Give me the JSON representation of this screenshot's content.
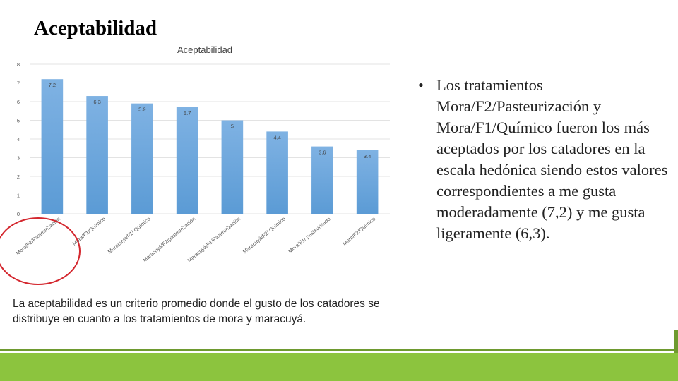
{
  "slide": {
    "title": "Aceptabilidad",
    "bullet_symbol": "•",
    "bullet": "Los tratamientos Mora/F2/Pasteurización y Mora/F1/Químico fueron los más aceptados por los catadores en la escala hedónica siendo estos valores correspondientes a me gusta moderadamente (7,2) y me gusta ligeramente (6,3).",
    "footnote": "La aceptabilidad es un criterio promedio donde el gusto de los catadores se distribuye en cuanto a los tratamientos de mora y maracuyá."
  },
  "colors": {
    "bar": "#5b9bd5",
    "bar_top": "#7fb2e3",
    "grid": "#e3e3e3",
    "axis_text": "#595959",
    "highlight": "#d4282f",
    "accent_green": "#8cc43e"
  },
  "chart_data": {
    "type": "bar",
    "title": "Aceptabilidad",
    "categories": [
      "Mora/F2/Pasteurización",
      "Mora/F1/Químico",
      "Maracuyá/F1/ Químico",
      "Maracuyá/F2/pasteurización",
      "Maracuyá/F1/Pasteurización",
      "Maracuyá/F2/ Químico",
      "Mora/F1/ pasteurizado",
      "Mora/F2/Químico"
    ],
    "values": [
      7.2,
      6.3,
      5.9,
      5.7,
      5,
      4.4,
      3.6,
      3.4
    ],
    "value_labels": [
      "7.2",
      "6.3",
      "5.9",
      "5.7",
      "5",
      "4.4",
      "3.6",
      "3.4"
    ],
    "y_ticks": [
      0,
      1,
      2,
      3,
      4,
      5,
      6,
      7,
      8
    ],
    "ylim": [
      0,
      8
    ],
    "grid": true,
    "legend": "none",
    "xlabel": "",
    "ylabel": ""
  }
}
